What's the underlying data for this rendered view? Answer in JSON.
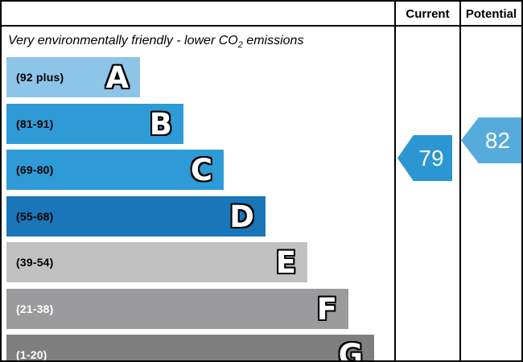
{
  "header": {
    "current_label": "Current",
    "potential_label": "Potential"
  },
  "title": {
    "text_before_sub": "Very environmentally friendly - lower CO",
    "subscript": "2",
    "text_after_sub": " emissions"
  },
  "bands": [
    {
      "letter": "A",
      "range": "(92 plus)",
      "color": "#8dc5e8"
    },
    {
      "letter": "B",
      "range": "(81-91)",
      "color": "#2e9bd6"
    },
    {
      "letter": "C",
      "range": "(69-80)",
      "color": "#2e9bd6"
    },
    {
      "letter": "D",
      "range": "(55-68)",
      "color": "#1a76b9"
    },
    {
      "letter": "E",
      "range": "(39-54)",
      "color": "#c1c1c1"
    },
    {
      "letter": "F",
      "range": "(21-38)",
      "color": "#9b9b9d"
    },
    {
      "letter": "G",
      "range": "(1-20)",
      "color": "#7f7f7f"
    }
  ],
  "current": {
    "value": "79",
    "arrow_color": "#2b96d2"
  },
  "potential": {
    "value": "82",
    "arrow_color": "#55abdc"
  },
  "chart_data": {
    "type": "bar",
    "title": "Very environmentally friendly - lower CO2 emissions",
    "categories": [
      "A",
      "B",
      "C",
      "D",
      "E",
      "F",
      "G"
    ],
    "band_ranges": [
      "92 plus",
      "81-91",
      "69-80",
      "55-68",
      "39-54",
      "21-38",
      "1-20"
    ],
    "band_colors": [
      "#8dc5e8",
      "#2e9bd6",
      "#2e9bd6",
      "#1a76b9",
      "#c1c1c1",
      "#9b9b9d",
      "#7f7f7f"
    ],
    "columns": [
      "Current",
      "Potential"
    ],
    "current_value": 79,
    "current_band": "C",
    "potential_value": 82,
    "potential_band": "B",
    "scale_min": 1,
    "scale_max": 100,
    "grid": false,
    "legend_position": "none"
  }
}
